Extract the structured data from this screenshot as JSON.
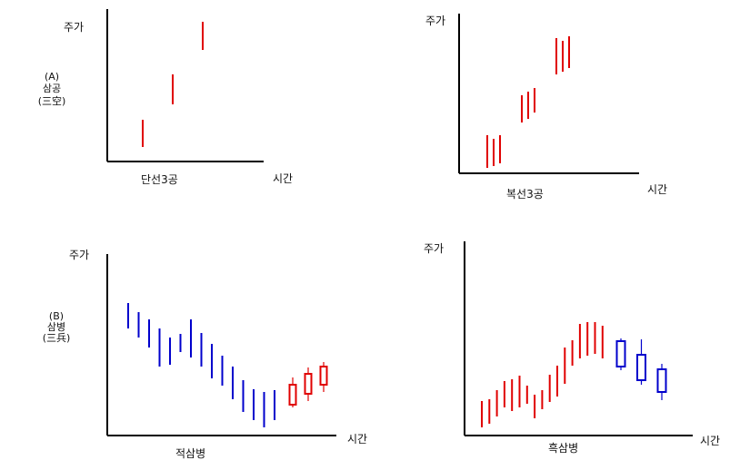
{
  "colors": {
    "red": "#e00000",
    "blue": "#0000cc",
    "axis": "#000000"
  },
  "side_labels": {
    "a": {
      "line1": "(A)",
      "line2": "삼공",
      "line3": "(三空)"
    },
    "b": {
      "line1": "(B)",
      "line2": "삼병",
      "line3": "(三兵)"
    }
  },
  "panels": [
    {
      "id": "single-gap",
      "ylabel": "주가",
      "xlabel": "시간",
      "caption": "단선3공",
      "lines": [
        {
          "color": "red",
          "hi": 40,
          "lo": 10
        },
        {
          "color": "red",
          "hi": 90,
          "lo": 57
        },
        {
          "color": "red",
          "hi": 148,
          "lo": 117
        }
      ]
    },
    {
      "id": "multi-gap",
      "ylabel": "주가",
      "xlabel": "시간",
      "caption": "복선3공",
      "lines": [
        {
          "color": "red",
          "hi": 36,
          "lo": 0
        },
        {
          "color": "red",
          "hi": 32,
          "lo": 2
        },
        {
          "color": "red",
          "hi": 36,
          "lo": 5
        },
        {
          "color": "red",
          "hi": 80,
          "lo": 50
        },
        {
          "color": "red",
          "hi": 84,
          "lo": 54
        },
        {
          "color": "red",
          "hi": 88,
          "lo": 61
        },
        {
          "color": "red",
          "hi": 143,
          "lo": 103
        },
        {
          "color": "red",
          "hi": 140,
          "lo": 106
        },
        {
          "color": "red",
          "hi": 145,
          "lo": 110
        }
      ]
    },
    {
      "id": "red-three-soldiers",
      "ylabel": "주가",
      "xlabel": "시간",
      "caption": "적삼병",
      "lines": [
        {
          "color": "blue",
          "hi": 140,
          "lo": 112
        },
        {
          "color": "blue",
          "hi": 130,
          "lo": 102
        },
        {
          "color": "blue",
          "hi": 122,
          "lo": 91
        },
        {
          "color": "blue",
          "hi": 112,
          "lo": 70
        },
        {
          "color": "blue",
          "hi": 102,
          "lo": 72
        },
        {
          "color": "blue",
          "hi": 106,
          "lo": 86
        },
        {
          "color": "blue",
          "hi": 122,
          "lo": 80
        },
        {
          "color": "blue",
          "hi": 107,
          "lo": 70
        },
        {
          "color": "blue",
          "hi": 95,
          "lo": 57
        },
        {
          "color": "blue",
          "hi": 82,
          "lo": 49
        },
        {
          "color": "blue",
          "hi": 70,
          "lo": 34
        },
        {
          "color": "blue",
          "hi": 55,
          "lo": 20
        },
        {
          "color": "blue",
          "hi": 45,
          "lo": 11
        },
        {
          "color": "blue",
          "hi": 42,
          "lo": 3
        },
        {
          "color": "blue",
          "hi": 44,
          "lo": 11
        }
      ],
      "candles": [
        {
          "color": "red",
          "high": 58,
          "low": 25,
          "top": 50,
          "bottom": 28
        },
        {
          "color": "red",
          "high": 69,
          "low": 32,
          "top": 62,
          "bottom": 40
        },
        {
          "color": "red",
          "high": 75,
          "low": 42,
          "top": 70,
          "bottom": 50
        }
      ]
    },
    {
      "id": "black-three-crows",
      "ylabel": "주가",
      "xlabel": "시간",
      "caption": "흑삼병",
      "lines": [
        {
          "color": "red",
          "hi": 32,
          "lo": 3
        },
        {
          "color": "red",
          "hi": 34,
          "lo": 7
        },
        {
          "color": "red",
          "hi": 44,
          "lo": 15
        },
        {
          "color": "red",
          "hi": 54,
          "lo": 25
        },
        {
          "color": "red",
          "hi": 56,
          "lo": 21
        },
        {
          "color": "red",
          "hi": 60,
          "lo": 25
        },
        {
          "color": "red",
          "hi": 49,
          "lo": 29
        },
        {
          "color": "red",
          "hi": 39,
          "lo": 13
        },
        {
          "color": "red",
          "hi": 44,
          "lo": 23
        },
        {
          "color": "red",
          "hi": 61,
          "lo": 31
        },
        {
          "color": "red",
          "hi": 71,
          "lo": 37
        },
        {
          "color": "red",
          "hi": 91,
          "lo": 51
        },
        {
          "color": "red",
          "hi": 99,
          "lo": 71
        },
        {
          "color": "red",
          "hi": 117,
          "lo": 79
        },
        {
          "color": "red",
          "hi": 119,
          "lo": 82
        },
        {
          "color": "red",
          "hi": 119,
          "lo": 84
        },
        {
          "color": "red",
          "hi": 115,
          "lo": 79
        }
      ],
      "candles": [
        {
          "color": "blue",
          "high": 101,
          "low": 66,
          "top": 98,
          "bottom": 70
        },
        {
          "color": "blue",
          "high": 100,
          "low": 50,
          "top": 83,
          "bottom": 55
        },
        {
          "color": "blue",
          "high": 73,
          "low": 33,
          "top": 67,
          "bottom": 42
        }
      ]
    }
  ]
}
